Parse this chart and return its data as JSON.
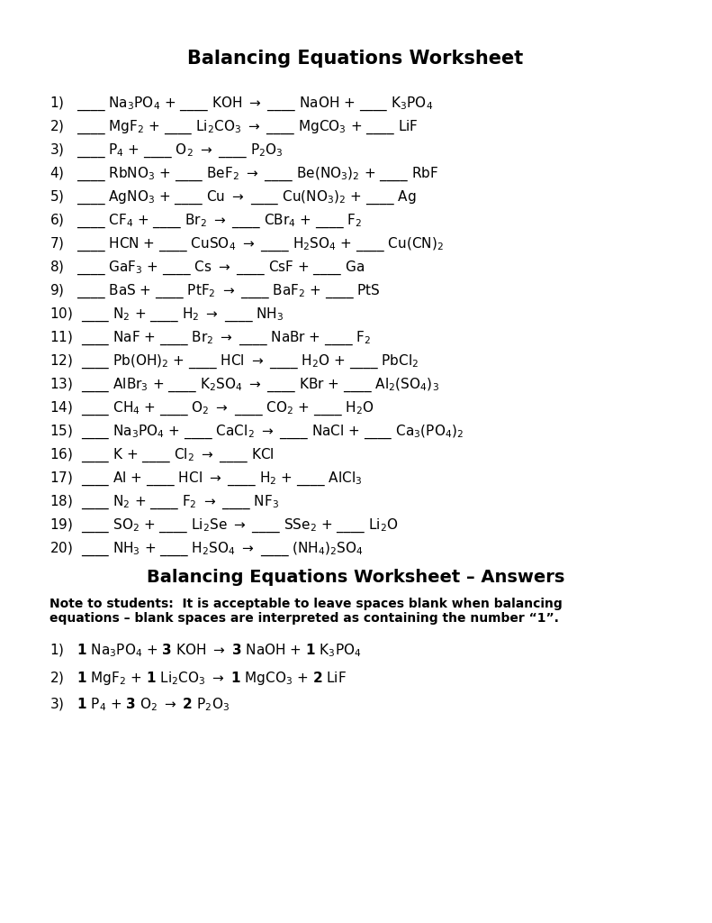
{
  "title": "Balancing Equations Worksheet",
  "title_fontsize": 15,
  "title_bold": true,
  "bg_color": "#ffffff",
  "text_color": "#000000",
  "font_family": "Arial",
  "equations": [
    "1)   ____ Na$_3$PO$_4$ + ____ KOH → ____ NaOH + ____ K$_3$PO$_4$",
    "2)   ____ MgF$_2$ + ____ Li$_2$CO$_3$ → ____ MgCO$_3$ + ____ LiF",
    "3)   ____ P$_4$ + ____ O$_2$ → ____ P$_2$O$_3$",
    "4)   ____ RbNO$_3$ + ____ BeF$_2$ → ____ Be(NO$_3$)$_2$ + ____ RbF",
    "5)   ____ AgNO$_3$ + ____ Cu → ____ Cu(NO$_3$)$_2$ + ____ Ag",
    "6)   ____ CF$_4$ + ____ Br$_2$ → ____ CBr$_4$ + ____ F$_2$",
    "7)   ____ HCN + ____ CuSO$_4$ → ____ H$_2$SO$_4$ + ____ Cu(CN)$_2$",
    "8)   ____ GaF$_3$ + ____ Cs → ____ CsF + ____ Ga",
    "9)   ____ BaS + ____ PtF$_2$ → ____ BaF$_2$ + ____ PtS",
    "10)  ____ N$_2$ + ____ H$_2$ → ____ NH$_3$",
    "11)  ____ NaF + ____ Br$_2$ → ____ NaBr + ____ F$_2$",
    "12)  ____ Pb(OH)$_2$ + ____ HCl → ____ H$_2$O + ____ PbCl$_2$",
    "13)  ____ AlBr$_3$ + ____ K$_2$SO$_4$ → ____ KBr + ____ Al$_2$(SO$_4$)$_3$",
    "14)  ____ CH$_4$ + ____ O$_2$ → ____ CO$_2$ + ____ H$_2$O",
    "15)  ____ Na$_3$PO$_4$ + ____ CaCl$_2$ → ____ NaCl + ____ Ca$_3$(PO$_4$)$_2$",
    "16)  ____ K + ____ Cl$_2$ → ____ KCl",
    "17)  ____ Al + ____ HCl → ____ H$_2$ + ____ AlCl$_3$",
    "18)  ____ N$_2$ + ____ F$_2$ → ____ NF$_3$",
    "19)  ____ SO$_2$ + ____ Li$_2$Se → ____ SSe$_2$ + ____ Li$_2$O",
    "20)  ____ NH$_3$ + ____ H$_2$SO$_4$ → ____ (NH$_4$)$_2$SO$_4$"
  ],
  "answers_title": "Balancing Equations Worksheet – Answers",
  "note": "Note to students:  It is acceptable to leave spaces blank when balancing\nequations – blank spaces are interpreted as containing the number “1”.",
  "answer_equations": [
    "1)   **1** Na$_3$PO$_4$ + **3** KOH → **3** NaOH + **1** K$_3$PO$_4$",
    "2)   **1** MgF$_2$ + **1** Li$_2$CO$_3$ → **1** MgCO$_3$ + **2** LiF",
    "3)   **1** P$_4$ + **3** O$_2$ → **2** P$_2$O$_3$"
  ],
  "eq_fontsize": 11,
  "ans_fontsize": 11
}
